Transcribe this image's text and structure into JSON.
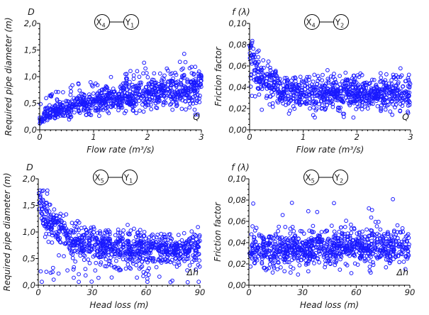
{
  "chart_data": [
    {
      "type": "scatter",
      "panel": "top-left",
      "relation": {
        "from": "X",
        "from_sub": "4",
        "to": "Y",
        "to_sub": "1"
      },
      "var_label_y": "D",
      "var_label_x": "Q",
      "xlabel": "Flow rate (m³/s)",
      "ylabel": "Required pipe diameter (m)",
      "xlim": [
        0,
        3
      ],
      "ylim": [
        0,
        2.0
      ],
      "xticks": [
        "0",
        "1",
        "2",
        "3"
      ],
      "xtick_values": [
        0,
        1,
        2,
        3
      ],
      "yticks": [
        "0,0",
        "0,5",
        "1,0",
        "1,5",
        "2,0"
      ],
      "ytick_values": [
        0,
        0.5,
        1.0,
        1.5,
        2.0
      ],
      "x_minor": 0.1,
      "y_minor": 0.1,
      "trend": {
        "shape": "sqrt-rise",
        "description": "D rises from ~0.1 at Q=0 to ~0.8 at Q=3; spread widens with Q; outliers up to ~1.75"
      },
      "n_points": 900,
      "marker_color": "#1a1aff",
      "seed": 11
    },
    {
      "type": "scatter",
      "panel": "top-right",
      "relation": {
        "from": "X",
        "from_sub": "4",
        "to": "Y",
        "to_sub": "2"
      },
      "var_label_y": "f (λ)",
      "var_label_x": "Q",
      "xlabel": "Flow rate (m³/s)",
      "ylabel": "Friction factor",
      "xlim": [
        0,
        3
      ],
      "ylim": [
        0,
        0.1
      ],
      "xticks": [
        "0",
        "1",
        "2",
        "3"
      ],
      "xtick_values": [
        0,
        1,
        2,
        3
      ],
      "yticks": [
        "0,00",
        "0,02",
        "0,04",
        "0,06",
        "0,08",
        "0,10"
      ],
      "ytick_values": [
        0,
        0.02,
        0.04,
        0.06,
        0.08,
        0.1
      ],
      "x_minor": 0.1,
      "y_minor": 0.005,
      "trend": {
        "shape": "decay",
        "description": "f ~0.06-0.08 near Q=0 dropping to ~0.035 by Q≈0.5, flat band 0.015-0.05 afterwards"
      },
      "n_points": 900,
      "marker_color": "#1a1aff",
      "seed": 23
    },
    {
      "type": "scatter",
      "panel": "bottom-left",
      "relation": {
        "from": "X",
        "from_sub": "5",
        "to": "Y",
        "to_sub": "1"
      },
      "var_label_y": "D",
      "var_label_x": "Δh",
      "xlabel": "Head loss (m)",
      "ylabel": "Required pipe diameter (m)",
      "xlim": [
        0,
        90
      ],
      "ylim": [
        0,
        2.0
      ],
      "xticks": [
        "0",
        "30",
        "60",
        "90"
      ],
      "xtick_values": [
        0,
        30,
        60,
        90
      ],
      "yticks": [
        "0,0",
        "0,5",
        "1,0",
        "1,5",
        "2,0"
      ],
      "ytick_values": [
        0,
        0.5,
        1.0,
        1.5,
        2.0
      ],
      "x_minor": 3,
      "y_minor": 0.1,
      "trend": {
        "shape": "decay",
        "description": "D ~1.5-1.75 near Δh=0 falling to ~0.65 band (0.1-1.0) for Δh>20"
      },
      "n_points": 900,
      "marker_color": "#1a1aff",
      "seed": 37
    },
    {
      "type": "scatter",
      "panel": "bottom-right",
      "relation": {
        "from": "X",
        "from_sub": "5",
        "to": "Y",
        "to_sub": "2"
      },
      "var_label_y": "f (λ)",
      "var_label_x": "Δh",
      "xlabel": "Head loss (m)",
      "ylabel": "Friction factor",
      "xlim": [
        0,
        90
      ],
      "ylim": [
        0,
        0.1
      ],
      "xticks": [
        "0",
        "30",
        "60",
        "90"
      ],
      "xtick_values": [
        0,
        30,
        60,
        90
      ],
      "yticks": [
        "0,00",
        "0,02",
        "0,04",
        "0,06",
        "0,08",
        "0,10"
      ],
      "ytick_values": [
        0,
        0.02,
        0.04,
        0.06,
        0.08,
        0.1
      ],
      "x_minor": 3,
      "y_minor": 0.005,
      "trend": {
        "shape": "flat",
        "description": "f roughly constant ~0.035 (range 0.01-0.06), slight rise with Δh; outliers up to ~0.084"
      },
      "n_points": 900,
      "marker_color": "#1a1aff",
      "seed": 53
    }
  ]
}
